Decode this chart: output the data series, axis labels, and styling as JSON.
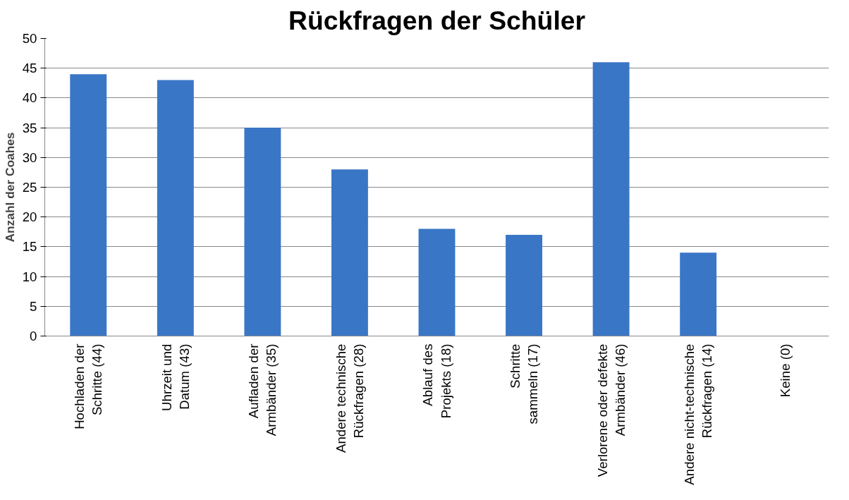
{
  "chart_data": {
    "type": "bar",
    "title": "Rückfragen der Schüler",
    "ylabel": "Anzahl der Coahes",
    "categories": [
      "Hochladen der\nSchritte (44)",
      "Uhrzeit und\nDatum (43)",
      "Aufladen der\nArmbänder (35)",
      "Andere technische\nRückfragen (28)",
      "Ablauf des\nProjekts (18)",
      "Schritte\nsammeln (17)",
      "Verlorene oder defekte\nArmbänder (46)",
      "Andere nicht-technische\nRückfragen (14)",
      "Keine (0)"
    ],
    "values": [
      44,
      43,
      35,
      28,
      18,
      17,
      46,
      14,
      0
    ],
    "color": "#3a76c6",
    "ylim": [
      0,
      50
    ],
    "yticks": [
      0,
      5,
      10,
      15,
      20,
      25,
      30,
      35,
      40,
      45,
      50
    ],
    "grid": "y"
  }
}
